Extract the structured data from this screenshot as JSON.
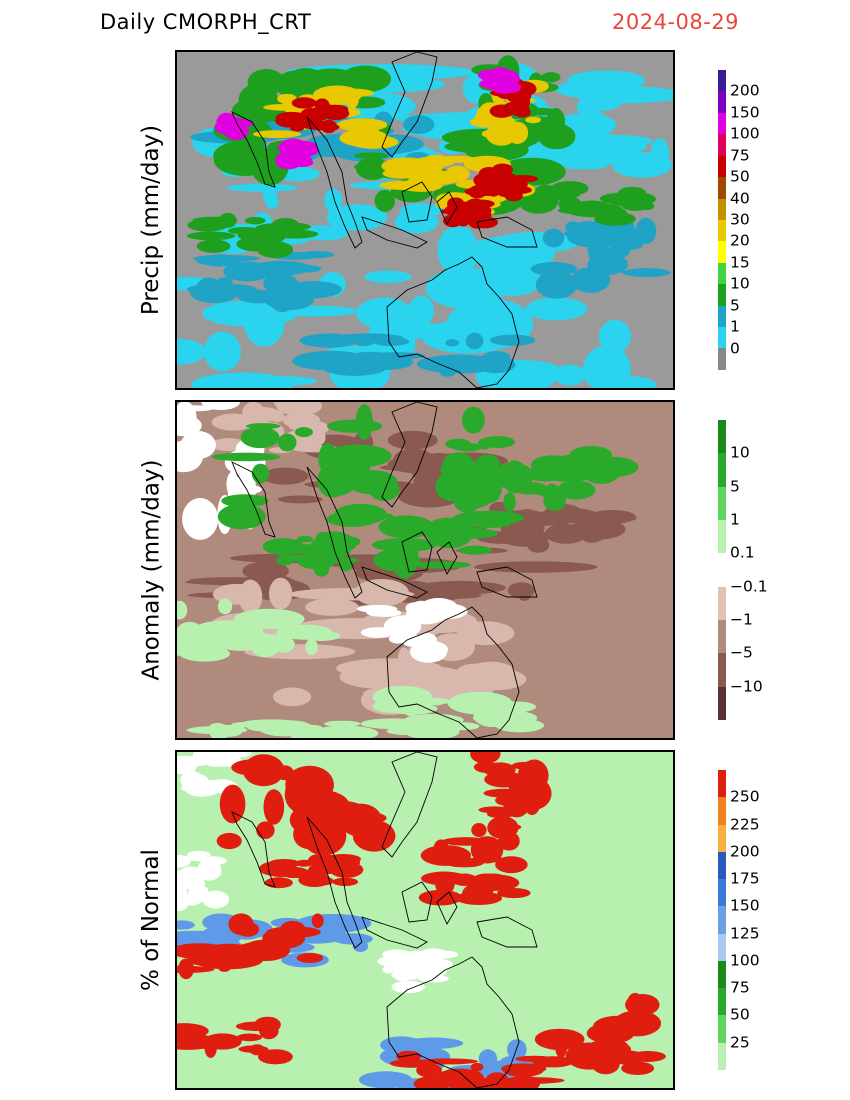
{
  "header": {
    "title": "Daily  CMORPH_CRT",
    "date": "2024-08-29"
  },
  "panels": [
    {
      "id": "precip",
      "ylabel": "Precip  (mm/day)",
      "base_color": "#9a9a9a",
      "colorbar": {
        "colors": [
          "#888888",
          "#2ad4ef",
          "#1fa3c7",
          "#1ea01e",
          "#3ed63e",
          "#ffff00",
          "#e8c800",
          "#c89000",
          "#a04a00",
          "#c80000",
          "#e0005a",
          "#e000e0",
          "#8000c0",
          "#3a1a96"
        ],
        "labels": [
          "0",
          "1",
          "5",
          "10",
          "15",
          "20",
          "30",
          "40",
          "50",
          "75",
          "100",
          "150",
          "200"
        ]
      },
      "layers": [
        {
          "color": "#2ad4ef",
          "spots": [
            [
              0.05,
              0.05,
              0.9,
              0.25
            ],
            [
              0.1,
              0.35,
              0.4,
              0.22
            ],
            [
              0.0,
              0.65,
              0.5,
              0.35
            ],
            [
              0.55,
              0.55,
              0.45,
              0.45
            ],
            [
              0.7,
              0.1,
              0.3,
              0.25
            ],
            [
              0.4,
              0.2,
              0.3,
              0.15
            ]
          ]
        },
        {
          "color": "#1fa3c7",
          "spots": [
            [
              0.1,
              0.2,
              0.4,
              0.12
            ],
            [
              0.3,
              0.85,
              0.4,
              0.12
            ],
            [
              0.05,
              0.6,
              0.3,
              0.15
            ],
            [
              0.75,
              0.5,
              0.2,
              0.2
            ]
          ]
        },
        {
          "color": "#1ea01e",
          "spots": [
            [
              0.12,
              0.06,
              0.3,
              0.3
            ],
            [
              0.4,
              0.25,
              0.35,
              0.2
            ],
            [
              0.62,
              0.05,
              0.15,
              0.25
            ],
            [
              0.05,
              0.5,
              0.2,
              0.1
            ],
            [
              0.75,
              0.4,
              0.2,
              0.1
            ]
          ]
        },
        {
          "color": "#e8c800",
          "spots": [
            [
              0.2,
              0.12,
              0.2,
              0.15
            ],
            [
              0.45,
              0.3,
              0.2,
              0.1
            ],
            [
              0.55,
              0.4,
              0.15,
              0.1
            ],
            [
              0.62,
              0.1,
              0.1,
              0.15
            ]
          ]
        },
        {
          "color": "#c80000",
          "spots": [
            [
              0.22,
              0.15,
              0.1,
              0.08
            ],
            [
              0.6,
              0.35,
              0.1,
              0.08
            ],
            [
              0.55,
              0.45,
              0.08,
              0.06
            ],
            [
              0.65,
              0.08,
              0.06,
              0.1
            ]
          ]
        },
        {
          "color": "#e000e0",
          "spots": [
            [
              0.1,
              0.2,
              0.03,
              0.05
            ],
            [
              0.22,
              0.28,
              0.04,
              0.05
            ],
            [
              0.63,
              0.06,
              0.04,
              0.05
            ]
          ]
        }
      ]
    },
    {
      "id": "anomaly",
      "ylabel": "Anomaly  (mm/day)",
      "base_color": "#b08a7c",
      "colorbar": {
        "colors": [
          "#5a3030",
          "#8a5a50",
          "#b08a7c",
          "#e2c0b4",
          "#ffffff",
          "#b8f0b0",
          "#5ed65e",
          "#2aaa2a",
          "#1a8a1a"
        ],
        "labels": [
          "−10",
          "−5",
          "−1",
          "−0.1",
          "0.1",
          "1",
          "5",
          "10"
        ]
      },
      "layers": [
        {
          "color": "#8a5a50",
          "spots": [
            [
              0.05,
              0.45,
              0.8,
              0.15
            ],
            [
              0.6,
              0.3,
              0.3,
              0.15
            ],
            [
              0.2,
              0.1,
              0.4,
              0.2
            ]
          ]
        },
        {
          "color": "#d8b8ac",
          "spots": [
            [
              0.0,
              0.55,
              0.6,
              0.35
            ],
            [
              0.4,
              0.65,
              0.3,
              0.25
            ],
            [
              0.1,
              0.0,
              0.2,
              0.15
            ]
          ]
        },
        {
          "color": "#ffffff",
          "spots": [
            [
              0.0,
              0.0,
              0.15,
              0.35
            ],
            [
              0.4,
              0.6,
              0.15,
              0.15
            ]
          ]
        },
        {
          "color": "#2aaa2a",
          "spots": [
            [
              0.12,
              0.05,
              0.3,
              0.3
            ],
            [
              0.35,
              0.3,
              0.3,
              0.2
            ],
            [
              0.55,
              0.05,
              0.15,
              0.25
            ],
            [
              0.7,
              0.15,
              0.2,
              0.15
            ],
            [
              0.2,
              0.4,
              0.15,
              0.1
            ]
          ]
        },
        {
          "color": "#b8f0b0",
          "spots": [
            [
              0.0,
              0.6,
              0.3,
              0.15
            ],
            [
              0.4,
              0.85,
              0.3,
              0.15
            ],
            [
              0.05,
              0.95,
              0.3,
              0.05
            ]
          ]
        }
      ]
    },
    {
      "id": "pct-normal",
      "ylabel": "% of Normal",
      "base_color": "#b8f0b0",
      "colorbar": {
        "colors": [
          "#b8f0b0",
          "#5ed65e",
          "#2aaa2a",
          "#1a8a1a",
          "#a8c8f0",
          "#6ea0e8",
          "#3c7ad8",
          "#2858c0",
          "#f8b040",
          "#f08020",
          "#e01e10"
        ],
        "labels": [
          "25",
          "50",
          "75",
          "100",
          "125",
          "150",
          "175",
          "200",
          "225",
          "250"
        ]
      },
      "layers": [
        {
          "color": "#ffffff",
          "spots": [
            [
              0.0,
              0.0,
              0.12,
              0.12
            ],
            [
              0.42,
              0.6,
              0.12,
              0.12
            ],
            [
              0.0,
              0.3,
              0.08,
              0.15
            ]
          ]
        },
        {
          "color": "#5e9ae8",
          "spots": [
            [
              0.0,
              0.5,
              0.4,
              0.12
            ],
            [
              0.4,
              0.85,
              0.3,
              0.15
            ]
          ]
        },
        {
          "color": "#e01e10",
          "spots": [
            [
              0.1,
              0.0,
              0.3,
              0.3
            ],
            [
              0.0,
              0.5,
              0.3,
              0.15
            ],
            [
              0.5,
              0.25,
              0.2,
              0.2
            ],
            [
              0.6,
              0.0,
              0.15,
              0.25
            ],
            [
              0.0,
              0.8,
              0.2,
              0.12
            ],
            [
              0.45,
              0.9,
              0.3,
              0.1
            ],
            [
              0.75,
              0.75,
              0.2,
              0.2
            ],
            [
              0.2,
              0.3,
              0.15,
              0.1
            ]
          ]
        }
      ]
    }
  ]
}
